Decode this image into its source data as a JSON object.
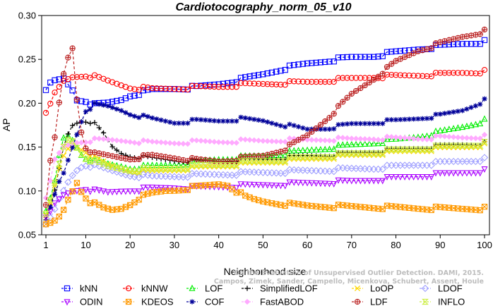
{
  "chart_data": {
    "type": "line",
    "title": "Cardiotocography_norm_05_v10",
    "xlabel": "Neighborhood size",
    "ylabel": "AP",
    "xlim": [
      1,
      100
    ],
    "ylim": [
      0.05,
      0.3
    ],
    "xticks": [
      1,
      10,
      20,
      30,
      40,
      50,
      60,
      70,
      80,
      90,
      100
    ],
    "xtick_labels": [
      "1",
      "10",
      "20",
      "30",
      "40",
      "50",
      "60",
      "70",
      "80",
      "90",
      "100"
    ],
    "yticks": [
      0.05,
      0.1,
      0.15,
      0.2,
      0.25,
      0.3
    ],
    "ytick_labels": [
      "0.05",
      "0.10",
      "0.15",
      "0.20",
      "0.25",
      "0.30"
    ],
    "grid": false,
    "legend_position": "bottom",
    "watermark": [
      "Campos, Zimek, Sander, Campello, Micenkova, Schubert, Assent, Houle",
      "On the Evaluation of Unsupervised Outlier Detection. DAMI, 2015."
    ],
    "series": [
      {
        "name": "kNN",
        "color": "#0000ff",
        "marker": "square",
        "x": [
          1,
          2,
          3,
          5,
          7,
          8,
          10,
          12,
          15,
          18,
          20,
          25,
          30,
          35,
          40,
          45,
          50,
          55,
          60,
          65,
          70,
          75,
          80,
          85,
          90,
          95,
          100
        ],
        "y": [
          0.213,
          0.222,
          0.225,
          0.228,
          0.215,
          0.204,
          0.203,
          0.198,
          0.2,
          0.204,
          0.209,
          0.215,
          0.217,
          0.218,
          0.222,
          0.227,
          0.233,
          0.24,
          0.245,
          0.249,
          0.252,
          0.254,
          0.258,
          0.262,
          0.265,
          0.268,
          0.27
        ]
      },
      {
        "name": "kNNW",
        "color": "#ff0000",
        "marker": "circle",
        "x": [
          1,
          2,
          3,
          5,
          7,
          10,
          12,
          15,
          20,
          25,
          30,
          35,
          40,
          45,
          50,
          55,
          60,
          65,
          70,
          75,
          80,
          85,
          90,
          95,
          100
        ],
        "y": [
          0.187,
          0.198,
          0.211,
          0.225,
          0.23,
          0.232,
          0.23,
          0.225,
          0.218,
          0.216,
          0.217,
          0.218,
          0.219,
          0.221,
          0.222,
          0.223,
          0.224,
          0.226,
          0.228,
          0.23,
          0.231,
          0.232,
          0.233,
          0.235,
          0.236
        ]
      },
      {
        "name": "LOF",
        "color": "#00ee00",
        "marker": "triangle-up",
        "x": [
          1,
          2,
          3,
          4,
          5,
          6,
          7,
          8,
          9,
          10,
          12,
          15,
          18,
          20,
          25,
          30,
          35,
          40,
          45,
          50,
          55,
          60,
          65,
          70,
          75,
          80,
          85,
          90,
          95,
          100
        ],
        "y": [
          0.075,
          0.09,
          0.11,
          0.14,
          0.16,
          0.163,
          0.158,
          0.15,
          0.142,
          0.138,
          0.135,
          0.13,
          0.128,
          0.126,
          0.128,
          0.13,
          0.133,
          0.136,
          0.138,
          0.14,
          0.143,
          0.146,
          0.149,
          0.152,
          0.155,
          0.158,
          0.162,
          0.167,
          0.173,
          0.18
        ]
      },
      {
        "name": "SimplifiedLOF",
        "color": "#000000",
        "marker": "plus",
        "x": [
          1,
          2,
          3,
          4,
          5,
          6,
          7,
          8,
          9,
          10,
          11,
          12,
          14,
          16,
          18,
          20,
          25,
          30,
          35,
          40,
          45,
          50,
          55,
          60,
          65,
          70,
          75,
          80,
          85,
          90,
          95,
          100
        ],
        "y": [
          0.065,
          0.08,
          0.1,
          0.125,
          0.15,
          0.165,
          0.175,
          0.178,
          0.18,
          0.18,
          0.179,
          0.176,
          0.165,
          0.15,
          0.143,
          0.14,
          0.137,
          0.135,
          0.134,
          0.134,
          0.135,
          0.136,
          0.138,
          0.14,
          0.141,
          0.143,
          0.145,
          0.147,
          0.149,
          0.151,
          0.153,
          0.154
        ]
      },
      {
        "name": "LoOP",
        "color": "#ffd700",
        "marker": "x",
        "x": [
          1,
          2,
          3,
          4,
          5,
          6,
          7,
          8,
          9,
          10,
          12,
          15,
          20,
          25,
          30,
          35,
          40,
          45,
          50,
          55,
          60,
          65,
          70,
          75,
          80,
          85,
          90,
          95,
          100
        ],
        "y": [
          0.07,
          0.085,
          0.105,
          0.125,
          0.14,
          0.148,
          0.15,
          0.15,
          0.148,
          0.145,
          0.138,
          0.13,
          0.122,
          0.122,
          0.124,
          0.126,
          0.128,
          0.13,
          0.132,
          0.134,
          0.136,
          0.138,
          0.14,
          0.142,
          0.144,
          0.146,
          0.148,
          0.15,
          0.152
        ]
      },
      {
        "name": "LDOF",
        "color": "#a0a0ff",
        "marker": "diamond",
        "x": [
          1,
          2,
          3,
          4,
          5,
          6,
          7,
          8,
          9,
          10,
          12,
          15,
          20,
          25,
          30,
          35,
          40,
          45,
          50,
          55,
          60,
          65,
          70,
          75,
          80,
          85,
          90,
          95,
          100
        ],
        "y": [
          0.06,
          0.068,
          0.078,
          0.09,
          0.1,
          0.11,
          0.118,
          0.124,
          0.128,
          0.13,
          0.128,
          0.124,
          0.118,
          0.116,
          0.117,
          0.118,
          0.119,
          0.12,
          0.121,
          0.122,
          0.123,
          0.124,
          0.125,
          0.126,
          0.128,
          0.13,
          0.132,
          0.134,
          0.136
        ]
      },
      {
        "name": "ODIN",
        "color": "#aa00ff",
        "marker": "triangle-down",
        "x": [
          1,
          2,
          3,
          5,
          7,
          9,
          10,
          12,
          15,
          18,
          20,
          25,
          30,
          35,
          40,
          45,
          50,
          55,
          60,
          65,
          70,
          75,
          80,
          85,
          90,
          95,
          100
        ],
        "y": [
          0.068,
          0.075,
          0.085,
          0.095,
          0.1,
          0.102,
          0.103,
          0.1,
          0.098,
          0.1,
          0.101,
          0.103,
          0.104,
          0.104,
          0.105,
          0.106,
          0.107,
          0.108,
          0.109,
          0.11,
          0.111,
          0.113,
          0.115,
          0.117,
          0.119,
          0.121,
          0.123
        ]
      },
      {
        "name": "KDEOS",
        "color": "#ff9900",
        "marker": "square-x",
        "x": [
          1,
          2,
          3,
          4,
          5,
          6,
          7,
          8,
          9,
          10,
          11,
          12,
          14,
          16,
          18,
          20,
          22,
          25,
          28,
          30,
          33,
          36,
          40,
          42,
          44,
          46,
          48,
          50,
          55,
          60,
          70,
          80,
          90,
          100
        ],
        "y": [
          0.06,
          0.062,
          0.065,
          0.07,
          0.078,
          0.09,
          0.1,
          0.11,
          0.1,
          0.093,
          0.088,
          0.085,
          0.08,
          0.078,
          0.08,
          0.085,
          0.092,
          0.097,
          0.1,
          0.101,
          0.103,
          0.105,
          0.108,
          0.107,
          0.1,
          0.093,
          0.09,
          0.088,
          0.085,
          0.083,
          0.082,
          0.081,
          0.08,
          0.08
        ]
      },
      {
        "name": "COF",
        "color": "#000099",
        "marker": "asterisk",
        "x": [
          2,
          3,
          4,
          5,
          6,
          7,
          8,
          9,
          10,
          12,
          15,
          18,
          20,
          25,
          30,
          35,
          40,
          45,
          50,
          55,
          60,
          65,
          70,
          75,
          80,
          85,
          90,
          95,
          100
        ],
        "y": [
          0.08,
          0.095,
          0.11,
          0.12,
          0.135,
          0.15,
          0.165,
          0.18,
          0.192,
          0.198,
          0.196,
          0.192,
          0.188,
          0.182,
          0.178,
          0.18,
          0.18,
          0.182,
          0.18,
          0.175,
          0.17,
          0.172,
          0.176,
          0.178,
          0.18,
          0.183,
          0.186,
          0.192,
          0.203
        ]
      },
      {
        "name": "FastABOD",
        "color": "#ffaaff",
        "marker": "diamond-filled",
        "x": [
          1,
          2,
          3,
          5,
          7,
          10,
          12,
          15,
          20,
          25,
          30,
          35,
          40,
          45,
          50,
          55,
          60,
          65,
          70,
          75,
          80,
          85,
          90,
          95,
          100
        ],
        "y": [
          0.09,
          0.11,
          0.135,
          0.15,
          0.155,
          0.157,
          0.158,
          0.158,
          0.157,
          0.155,
          0.155,
          0.156,
          0.156,
          0.157,
          0.157,
          0.158,
          0.158,
          0.159,
          0.159,
          0.16,
          0.16,
          0.16,
          0.161,
          0.161,
          0.162
        ]
      },
      {
        "name": "LDF",
        "color": "#bb2222",
        "marker": "circle-plus",
        "dashed": true,
        "x": [
          1,
          2,
          3,
          4,
          5,
          6,
          7,
          8,
          9,
          10,
          12,
          15,
          18,
          20,
          25,
          30,
          35,
          40,
          45,
          50,
          55,
          60,
          65,
          70,
          75,
          80,
          85,
          90,
          95,
          100
        ],
        "y": [
          0.082,
          0.133,
          0.16,
          0.2,
          0.233,
          0.252,
          0.263,
          0.205,
          0.168,
          0.15,
          0.142,
          0.14,
          0.138,
          0.137,
          0.14,
          0.138,
          0.135,
          0.134,
          0.137,
          0.14,
          0.148,
          0.163,
          0.185,
          0.21,
          0.228,
          0.247,
          0.26,
          0.268,
          0.276,
          0.282
        ]
      },
      {
        "name": "INFLO",
        "color": "#ccee44",
        "marker": "hourglass",
        "x": [
          1,
          2,
          3,
          4,
          5,
          6,
          7,
          8,
          9,
          10,
          12,
          15,
          20,
          25,
          30,
          35,
          40,
          45,
          50,
          55,
          60,
          65,
          70,
          75,
          80,
          85,
          90,
          95,
          100
        ],
        "y": [
          0.072,
          0.088,
          0.108,
          0.13,
          0.15,
          0.158,
          0.157,
          0.15,
          0.143,
          0.138,
          0.133,
          0.128,
          0.124,
          0.124,
          0.126,
          0.128,
          0.13,
          0.132,
          0.134,
          0.136,
          0.138,
          0.14,
          0.142,
          0.144,
          0.146,
          0.148,
          0.15,
          0.152,
          0.154
        ]
      }
    ],
    "legend_rows": [
      [
        "kNN",
        "kNNW",
        "LOF",
        "SimplifiedLOF",
        "LoOP",
        "LDOF"
      ],
      [
        "ODIN",
        "KDEOS",
        "COF",
        "FastABOD",
        "LDF",
        "INFLO"
      ]
    ]
  }
}
